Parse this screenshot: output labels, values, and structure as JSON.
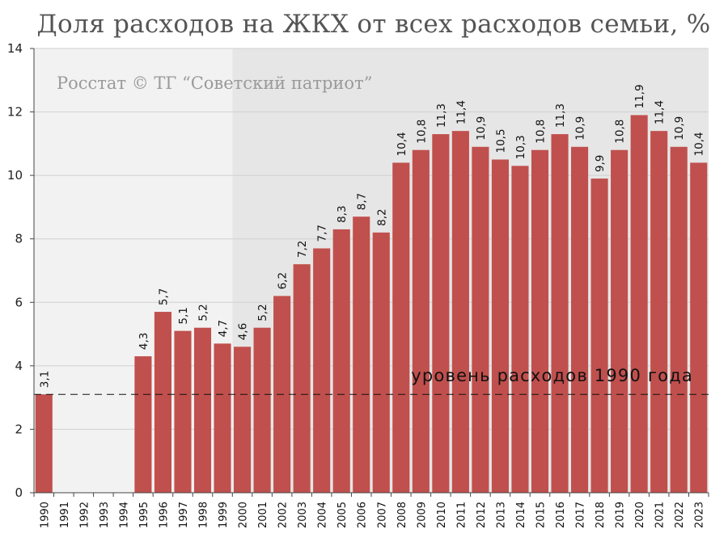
{
  "chart_data": {
    "type": "bar",
    "title": "Доля расходов на ЖКХ от всех расходов семьи, %",
    "source": "Росстат © ТГ “Советский патриот”",
    "ylim": [
      0,
      14
    ],
    "yticks": [
      0,
      2,
      4,
      6,
      8,
      10,
      12,
      14
    ],
    "categories": [
      "1990",
      "1991",
      "1992",
      "1993",
      "1994",
      "1995",
      "1996",
      "1997",
      "1998",
      "1999",
      "2000",
      "2001",
      "2002",
      "2003",
      "2004",
      "2005",
      "2006",
      "2007",
      "2008",
      "2009",
      "2010",
      "2011",
      "2012",
      "2013",
      "2014",
      "2015",
      "2016",
      "2017",
      "2018",
      "2019",
      "2020",
      "2021",
      "2022",
      "2023"
    ],
    "values": [
      3.1,
      null,
      null,
      null,
      null,
      4.3,
      5.7,
      5.1,
      5.2,
      4.7,
      4.6,
      5.2,
      6.2,
      7.2,
      7.7,
      8.3,
      8.7,
      8.2,
      10.4,
      10.8,
      11.3,
      11.4,
      10.9,
      10.5,
      10.3,
      10.8,
      11.3,
      10.9,
      9.9,
      10.8,
      11.9,
      11.4,
      10.9,
      10.4
    ],
    "value_labels": [
      "3,1",
      "",
      "",
      "",
      "",
      "4,3",
      "5,7",
      "5,1",
      "5,2",
      "4,7",
      "4,6",
      "5,2",
      "6,2",
      "7,2",
      "7,7",
      "8,3",
      "8,7",
      "8,2",
      "10,4",
      "10,8",
      "11,3",
      "11,4",
      "10,9",
      "10,5",
      "10,3",
      "10,8",
      "11,3",
      "10,9",
      "9,9",
      "10,8",
      "11,9",
      "11,4",
      "10,9",
      "10,4"
    ],
    "reference_line": {
      "value": 3.1,
      "label": "уровень расходов 1990 года"
    },
    "shaded_period": {
      "from": "2000",
      "to": "2023"
    },
    "grid": true,
    "colors": {
      "bar": "#c0504d",
      "background_early": "#f2f2f2",
      "background_late": "#e6e6e6",
      "grid": "#d0d0d0"
    }
  }
}
